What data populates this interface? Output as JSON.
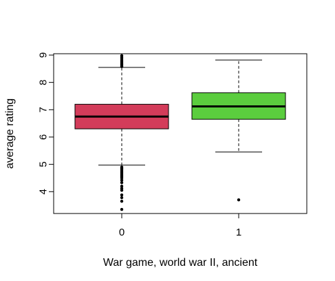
{
  "chart_data": {
    "type": "box",
    "xlabel": "War game, world war II, ancient",
    "ylabel": "average rating",
    "categories": [
      "0",
      "1"
    ],
    "y_ticks": [
      4,
      5,
      6,
      7,
      8,
      9
    ],
    "ylim": [
      3.2,
      9.05
    ],
    "box_colors": [
      "#D33C5A",
      "#5BCD3E"
    ],
    "boxes": [
      {
        "category": "0",
        "whisker_low": 4.97,
        "q1": 6.3,
        "median": 6.75,
        "q3": 7.2,
        "whisker_high": 8.55,
        "outliers": [
          3.35,
          3.65,
          3.78,
          3.88,
          4.05,
          4.12,
          4.2,
          4.33,
          4.42,
          4.5,
          4.55,
          4.6,
          4.65,
          4.7,
          4.75,
          4.8,
          4.85,
          4.9,
          8.58,
          8.62,
          8.66,
          8.7,
          8.75,
          8.8,
          8.86,
          8.92,
          8.98
        ]
      },
      {
        "category": "1",
        "whisker_low": 5.45,
        "q1": 6.65,
        "median": 7.12,
        "q3": 7.62,
        "whisker_high": 8.82,
        "outliers": [
          3.7
        ]
      }
    ],
    "grid": false,
    "legend": "none"
  }
}
